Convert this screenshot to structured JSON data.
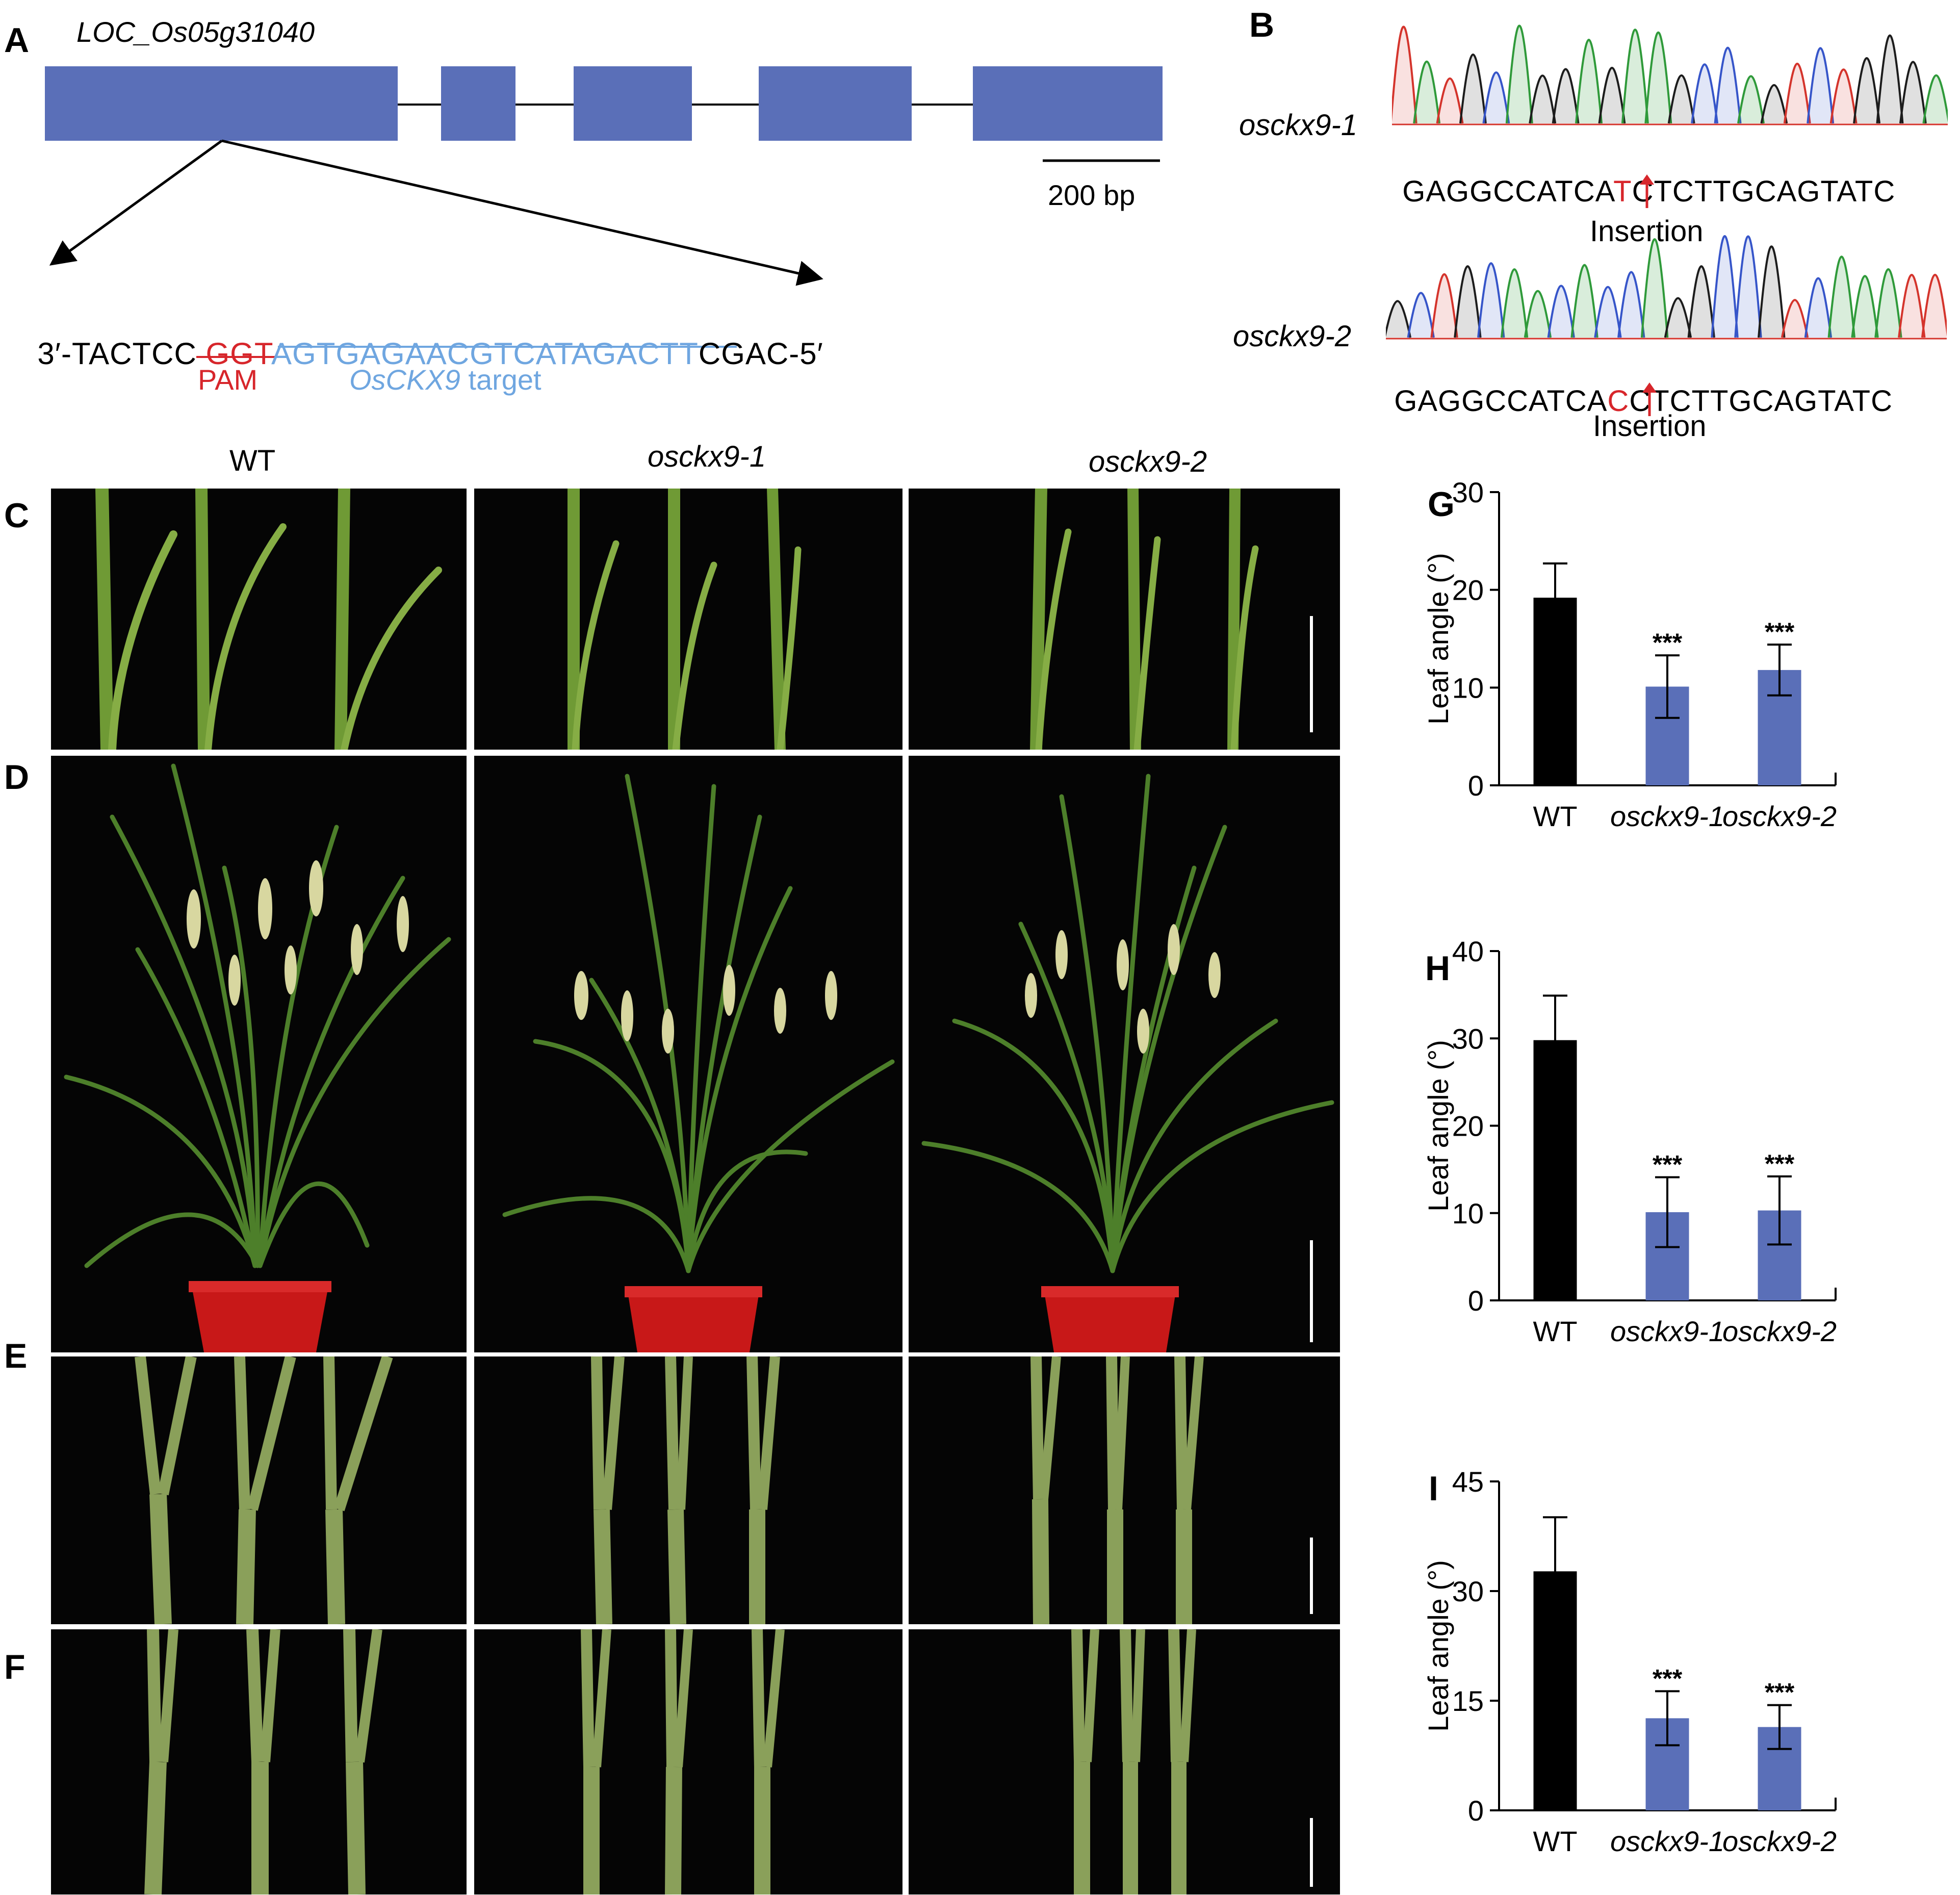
{
  "panels": {
    "a": "A",
    "b": "B",
    "c": "C",
    "d": "D",
    "e": "E",
    "f": "F",
    "g": "G",
    "h": "H",
    "i": "I"
  },
  "gene_model": {
    "gene_id": "LOC_Os05g31040",
    "scale_bar": "200 bp",
    "exon_color": "#5a6fb8",
    "seq_left": "3′-TACTCC ",
    "seq_pam": "GGT",
    "seq_target": "AGTGAGAACGTCATAGACTT",
    "seq_right": "CGAC-5′",
    "pam_label": "PAM",
    "target_gene": "OsCKX9",
    "target_word": " target",
    "pam_color": "#d7262b",
    "target_color": "#6fa6e0"
  },
  "chromatograms": [
    {
      "line": "osckx9-1",
      "seq_before": "GAGGCCATCA",
      "seq_insert": "T",
      "seq_after": "CTCTTGCAGTATC",
      "note": "Insertion"
    },
    {
      "line": "osckx9-2",
      "seq_before": "GAGGCCATCA",
      "seq_insert": "C",
      "seq_after": "CTCTTGCAGTATC",
      "note": "Insertion"
    }
  ],
  "photo_columns": [
    "WT",
    "osckx9-1",
    "osckx9-2"
  ],
  "colors": {
    "wt_bar": "#000000",
    "mutant_bar": "#5a6fb8",
    "insert": "#d7262b",
    "pot": "#c81818",
    "leaf": "#6f9a35"
  },
  "chart_data": [
    {
      "panel": "G",
      "type": "bar",
      "categories": [
        "WT",
        "osckx9-1",
        "osckx9-2"
      ],
      "values": [
        19.2,
        10.1,
        11.8
      ],
      "errors": [
        3.5,
        3.2,
        2.6
      ],
      "significance": [
        "",
        "***",
        "***"
      ],
      "ylabel": "Leaf angle (°)",
      "ylim": [
        0,
        30
      ],
      "yticks": [
        0,
        10,
        20,
        30
      ],
      "colors": [
        "#000000",
        "#5a6fb8",
        "#5a6fb8"
      ]
    },
    {
      "panel": "H",
      "type": "bar",
      "categories": [
        "WT",
        "osckx9-1",
        "osckx9-2"
      ],
      "values": [
        29.8,
        10.1,
        10.3
      ],
      "errors": [
        5.1,
        4.0,
        3.9
      ],
      "significance": [
        "",
        "***",
        "***"
      ],
      "ylabel": "Leaf angle (°)",
      "ylim": [
        0,
        40
      ],
      "yticks": [
        0,
        10,
        20,
        30,
        40
      ],
      "colors": [
        "#000000",
        "#5a6fb8",
        "#5a6fb8"
      ]
    },
    {
      "panel": "I",
      "type": "bar",
      "categories": [
        "WT",
        "osckx9-1",
        "osckx9-2"
      ],
      "values": [
        32.7,
        12.6,
        11.4
      ],
      "errors": [
        7.4,
        3.7,
        3.0
      ],
      "significance": [
        "",
        "***",
        "***"
      ],
      "ylabel": "Leaf angle (°)",
      "ylim": [
        0,
        45
      ],
      "yticks": [
        0,
        15,
        30,
        45
      ],
      "colors": [
        "#000000",
        "#5a6fb8",
        "#5a6fb8"
      ]
    }
  ]
}
